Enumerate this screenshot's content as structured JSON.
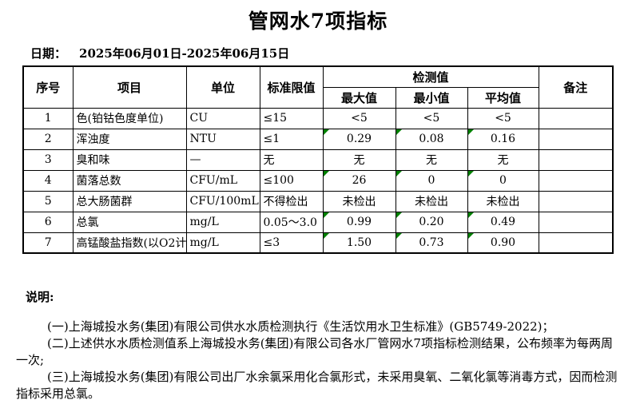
{
  "page": {
    "title": "管网水7项指标",
    "date_label": "日期：",
    "date_value": "2025年06月01日-2025年06月15日"
  },
  "table": {
    "flag_color": "#008000",
    "headers": {
      "no": "序号",
      "item": "项目",
      "unit": "单位",
      "limit": "标准限值",
      "detection": "检测值",
      "max": "最大值",
      "min": "最小值",
      "avg": "平均值",
      "remark": "备注"
    },
    "rows": [
      {
        "no": "1",
        "item": "色(铂钴色度单位)",
        "unit": "CU",
        "limit": "≤15",
        "max": "<5",
        "min": "<5",
        "avg": "<5",
        "remark": "",
        "flag": false
      },
      {
        "no": "2",
        "item": "浑浊度",
        "unit": "NTU",
        "limit": "≤1",
        "max": "0.29",
        "min": "0.08",
        "avg": "0.16",
        "remark": "",
        "flag": true
      },
      {
        "no": "3",
        "item": "臭和味",
        "unit": "—",
        "limit": "无",
        "max": "无",
        "min": "无",
        "avg": "无",
        "remark": "",
        "flag": false
      },
      {
        "no": "4",
        "item": "菌落总数",
        "unit": "CFU/mL",
        "limit": "≤100",
        "max": "26",
        "min": "0",
        "avg": "0",
        "remark": "",
        "flag": true
      },
      {
        "no": "5",
        "item": "总大肠菌群",
        "unit": "CFU/100mL",
        "limit": "不得检出",
        "max": "未检出",
        "min": "未检出",
        "avg": "未检出",
        "remark": "",
        "flag": false
      },
      {
        "no": "6",
        "item": "总氯",
        "unit": "mg/L",
        "limit": "0.05～3.0",
        "max": "0.99",
        "min": "0.20",
        "avg": "0.49",
        "remark": "",
        "flag": true
      },
      {
        "no": "7",
        "item": "高锰酸盐指数(以O2计)",
        "unit": "mg/L",
        "limit": "≤3",
        "max": "1.50",
        "min": "0.73",
        "avg": "0.90",
        "remark": "",
        "flag": true
      }
    ]
  },
  "notes": {
    "heading": "说明:",
    "items": [
      "(一)上海城投水务(集团)有限公司供水水质检测执行《生活饮用水卫生标准》(GB5749-2022)；",
      "(二)上述供水水质检测值系上海城投水务(集团)有限公司各水厂管网水7项指标检测结果，公布频率为每两周一次;",
      "(三)上海城投水务(集团)有限公司出厂水余氯采用化合氯形式，未采用臭氧、二氧化氯等消毒方式，因而检测指标采用总氯。"
    ]
  }
}
